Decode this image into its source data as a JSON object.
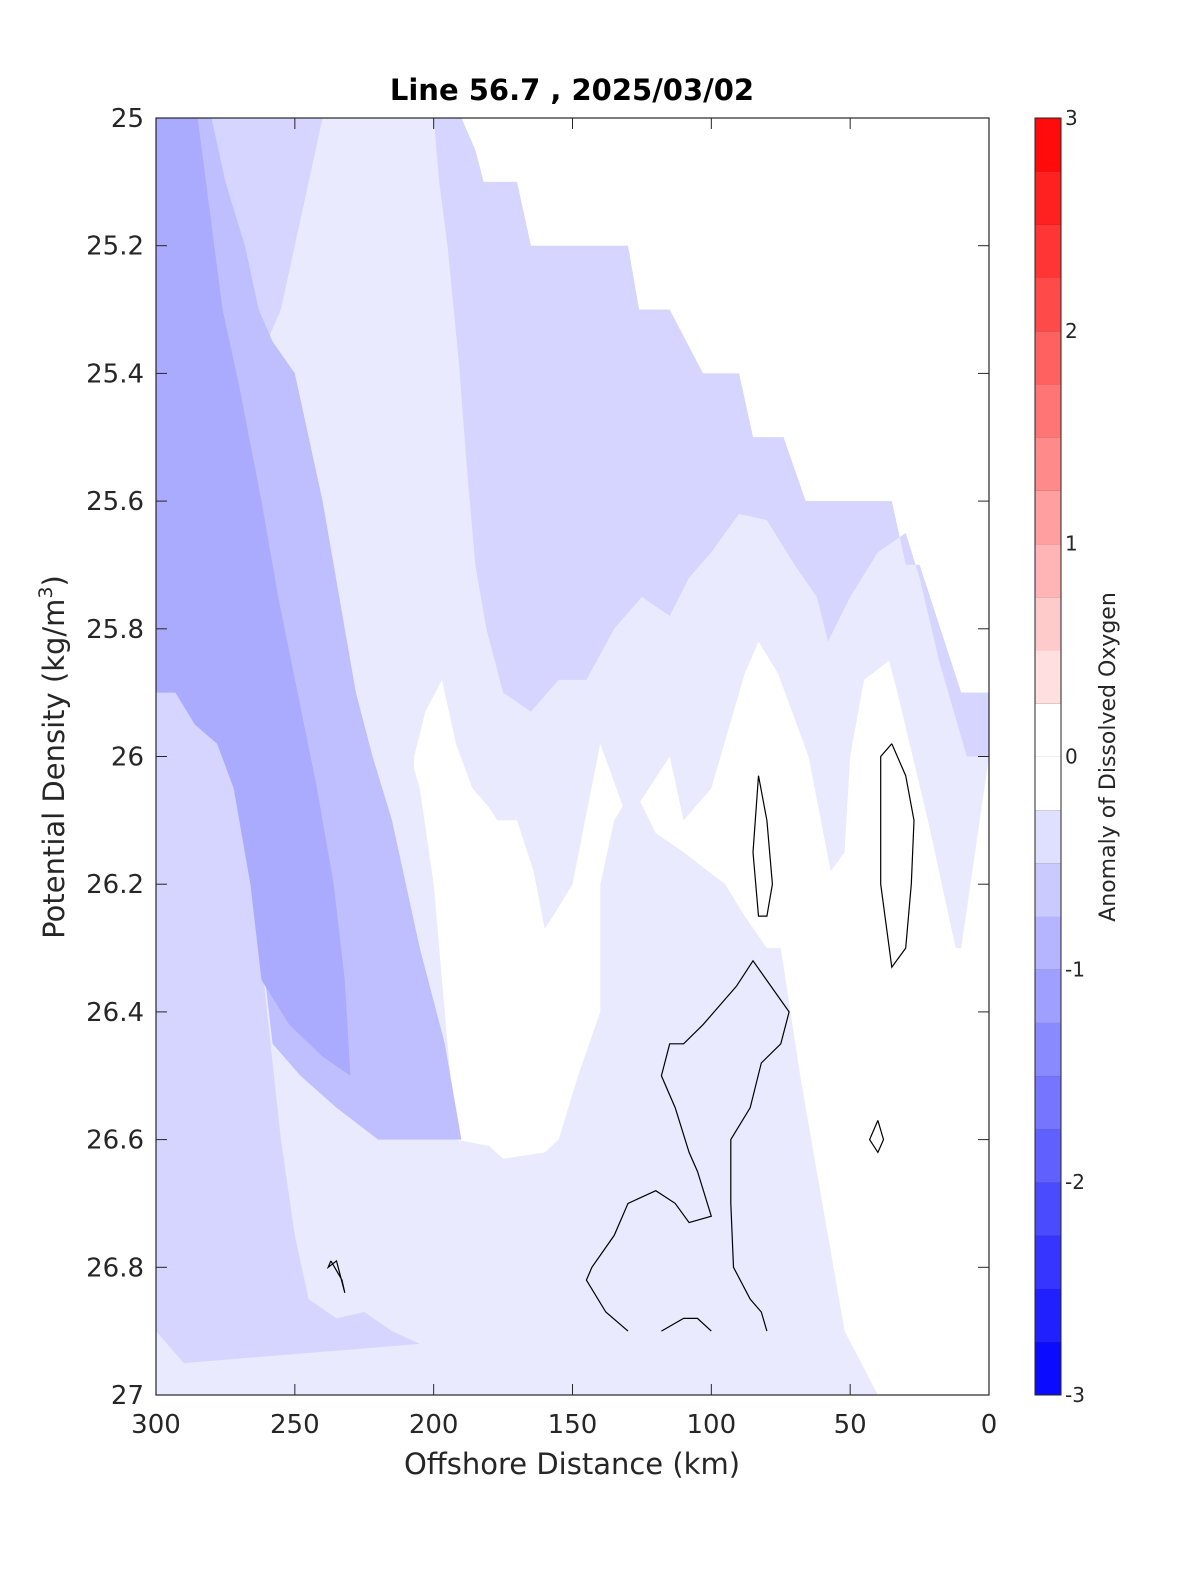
{
  "chart_data": {
    "type": "contour",
    "title": "Line 56.7 , 2025/03/02",
    "xlabel": "Offshore Distance (km)",
    "ylabel_main": "Potential Density (kg/m",
    "ylabel_sup": "3",
    "ylabel_close": ")",
    "xlim": [
      300,
      0
    ],
    "ylim": [
      25,
      27
    ],
    "x_reversed": true,
    "y_reversed": true,
    "x_ticks": [
      300,
      250,
      200,
      150,
      100,
      50,
      0
    ],
    "y_ticks": [
      25,
      25.2,
      25.4,
      25.6,
      25.8,
      26,
      26.2,
      26.4,
      26.6,
      26.8,
      27
    ],
    "x_tick_labels": [
      "300",
      "250",
      "200",
      "150",
      "100",
      "50",
      "0"
    ],
    "y_tick_labels": [
      "25",
      "25.2",
      "25.4",
      "25.6",
      "25.8",
      "26",
      "26.2",
      "26.4",
      "26.6",
      "26.8",
      "27"
    ],
    "colorbar": {
      "label": "Anomaly of Dissolved Oxygen",
      "range": [
        -3,
        3
      ],
      "step": 0.25,
      "ticks": [
        -3,
        -2,
        -1,
        0,
        1,
        2,
        3
      ],
      "tick_labels": [
        "-3",
        "-2",
        "-1",
        "0",
        "1",
        "2",
        "3"
      ],
      "negative_color": "#0000ff",
      "positive_color": "#ff0000",
      "neutral_color": "#ffffff"
    },
    "data_region_top_boundary": [
      [
        300,
        25.0
      ],
      [
        190,
        25.0
      ],
      [
        185,
        25.05
      ],
      [
        182,
        25.1
      ],
      [
        170,
        25.1
      ],
      [
        165,
        25.2
      ],
      [
        130,
        25.2
      ],
      [
        126,
        25.3
      ],
      [
        115,
        25.3
      ],
      [
        103,
        25.4
      ],
      [
        90,
        25.4
      ],
      [
        85,
        25.5
      ],
      [
        74,
        25.5
      ],
      [
        66,
        25.6
      ],
      [
        35,
        25.6
      ],
      [
        30,
        25.7
      ],
      [
        25,
        25.7
      ],
      [
        10,
        25.9
      ],
      [
        0,
        25.9
      ]
    ],
    "filled_levels": [
      {
        "level": -0.25,
        "points": [
          [
            300,
            25.0
          ],
          [
            190,
            25.0
          ],
          [
            185,
            25.05
          ],
          [
            182,
            25.1
          ],
          [
            170,
            25.1
          ],
          [
            165,
            25.2
          ],
          [
            130,
            25.2
          ],
          [
            126,
            25.3
          ],
          [
            115,
            25.3
          ],
          [
            103,
            25.4
          ],
          [
            90,
            25.4
          ],
          [
            85,
            25.5
          ],
          [
            74,
            25.5
          ],
          [
            66,
            25.6
          ],
          [
            35,
            25.6
          ],
          [
            30,
            25.7
          ],
          [
            25,
            25.7
          ],
          [
            10,
            25.9
          ],
          [
            0,
            25.9
          ],
          [
            0,
            26.0
          ],
          [
            5,
            26.15
          ],
          [
            10,
            26.3
          ],
          [
            12,
            26.3
          ],
          [
            22,
            26.1
          ],
          [
            33,
            25.9
          ],
          [
            36,
            25.85
          ],
          [
            45,
            25.88
          ],
          [
            50,
            26.0
          ],
          [
            52,
            26.15
          ],
          [
            57,
            26.18
          ],
          [
            65,
            26.0
          ],
          [
            76,
            25.87
          ],
          [
            83,
            25.82
          ],
          [
            88,
            25.87
          ],
          [
            100,
            26.05
          ],
          [
            110,
            26.1
          ],
          [
            115,
            26.0
          ],
          [
            130,
            26.1
          ],
          [
            140,
            25.98
          ],
          [
            150,
            26.2
          ],
          [
            157,
            26.25
          ],
          [
            160,
            26.27
          ],
          [
            164,
            26.18
          ],
          [
            170,
            26.1
          ],
          [
            177,
            26.1
          ],
          [
            180,
            26.08
          ],
          [
            186,
            26.05
          ],
          [
            192,
            25.98
          ],
          [
            197,
            25.88
          ],
          [
            203,
            25.93
          ],
          [
            207,
            26.0
          ],
          [
            208,
            26.15
          ],
          [
            210,
            26.2
          ],
          [
            217,
            26.33
          ],
          [
            225,
            26.4
          ],
          [
            230,
            26.3
          ],
          [
            233,
            26.17
          ],
          [
            245,
            25.85
          ],
          [
            247,
            25.7
          ],
          [
            244,
            25.45
          ],
          [
            238,
            25.32
          ],
          [
            233,
            25.4
          ],
          [
            237,
            25.5
          ],
          [
            243,
            25.6
          ],
          [
            252,
            25.7
          ],
          [
            258,
            25.72
          ],
          [
            265,
            25.73
          ],
          [
            275,
            25.6
          ],
          [
            278,
            25.5
          ],
          [
            270,
            25.45
          ],
          [
            260,
            25.43
          ],
          [
            240,
            25.6
          ],
          [
            230,
            25.75
          ],
          [
            215,
            25.9
          ],
          [
            205,
            26.05
          ],
          [
            200,
            26.2
          ],
          [
            196,
            26.4
          ],
          [
            192,
            26.6
          ],
          [
            180,
            26.61
          ],
          [
            175,
            26.63
          ],
          [
            160,
            26.62
          ],
          [
            155,
            26.6
          ],
          [
            148,
            26.5
          ],
          [
            140,
            26.4
          ],
          [
            140,
            26.2
          ],
          [
            135,
            26.1
          ],
          [
            128,
            26.05
          ],
          [
            120,
            26.12
          ],
          [
            110,
            26.15
          ],
          [
            95,
            26.2
          ],
          [
            88,
            26.25
          ],
          [
            80,
            26.3
          ],
          [
            75,
            26.3
          ],
          [
            68,
            26.5
          ],
          [
            60,
            26.7
          ],
          [
            52,
            26.9
          ],
          [
            40,
            27.0
          ],
          [
            300,
            27.0
          ]
        ]
      },
      {
        "level": -0.5,
        "points": [
          [
            300,
            25.0
          ],
          [
            190,
            25.0
          ],
          [
            185,
            25.05
          ],
          [
            182,
            25.1
          ],
          [
            170,
            25.1
          ],
          [
            165,
            25.2
          ],
          [
            130,
            25.2
          ],
          [
            126,
            25.3
          ],
          [
            115,
            25.3
          ],
          [
            103,
            25.4
          ],
          [
            90,
            25.4
          ],
          [
            85,
            25.5
          ],
          [
            74,
            25.5
          ],
          [
            66,
            25.6
          ],
          [
            35,
            25.6
          ],
          [
            30,
            25.7
          ],
          [
            25,
            25.7
          ],
          [
            10,
            25.9
          ],
          [
            0,
            25.9
          ],
          [
            0,
            26.0
          ],
          [
            8,
            26.0
          ],
          [
            18,
            25.85
          ],
          [
            25,
            25.72
          ],
          [
            30,
            25.65
          ],
          [
            40,
            25.68
          ],
          [
            50,
            25.75
          ],
          [
            58,
            25.82
          ],
          [
            62,
            25.75
          ],
          [
            70,
            25.7
          ],
          [
            80,
            25.63
          ],
          [
            90,
            25.62
          ],
          [
            100,
            25.68
          ],
          [
            108,
            25.72
          ],
          [
            115,
            25.78
          ],
          [
            125,
            25.75
          ],
          [
            135,
            25.8
          ],
          [
            145,
            25.88
          ],
          [
            155,
            25.88
          ],
          [
            165,
            25.93
          ],
          [
            175,
            25.9
          ],
          [
            181,
            25.8
          ],
          [
            185,
            25.7
          ],
          [
            188,
            25.55
          ],
          [
            191,
            25.38
          ],
          [
            195,
            25.2
          ],
          [
            198,
            25.1
          ],
          [
            200,
            25.0
          ],
          [
            240,
            25.0
          ],
          [
            245,
            25.1
          ],
          [
            250,
            25.2
          ],
          [
            255,
            25.3
          ],
          [
            260,
            25.35
          ],
          [
            270,
            25.38
          ],
          [
            285,
            25.33
          ],
          [
            293,
            25.3
          ],
          [
            298,
            25.15
          ],
          [
            300,
            25.15
          ],
          [
            300,
            25.73
          ],
          [
            290,
            25.8
          ],
          [
            280,
            25.85
          ],
          [
            272,
            26.0
          ],
          [
            265,
            26.2
          ],
          [
            260,
            26.4
          ],
          [
            255,
            26.6
          ],
          [
            250,
            26.75
          ],
          [
            245,
            26.85
          ],
          [
            235,
            26.88
          ],
          [
            225,
            26.87
          ],
          [
            215,
            26.9
          ],
          [
            205,
            26.92
          ],
          [
            290,
            26.95
          ],
          [
            300,
            26.9
          ]
        ]
      },
      {
        "level": -0.75,
        "points": [
          [
            300,
            25.0
          ],
          [
            280,
            25.0
          ],
          [
            275,
            25.1
          ],
          [
            268,
            25.2
          ],
          [
            263,
            25.3
          ],
          [
            258,
            25.35
          ],
          [
            250,
            25.4
          ],
          [
            245,
            25.5
          ],
          [
            240,
            25.6
          ],
          [
            236,
            25.7
          ],
          [
            232,
            25.8
          ],
          [
            228,
            25.9
          ],
          [
            222,
            26.0
          ],
          [
            215,
            26.1
          ],
          [
            210,
            26.2
          ],
          [
            205,
            26.3
          ],
          [
            196,
            26.45
          ],
          [
            192,
            26.55
          ],
          [
            190,
            26.6
          ],
          [
            220,
            26.6
          ],
          [
            235,
            26.55
          ],
          [
            248,
            26.5
          ],
          [
            258,
            26.45
          ],
          [
            262,
            26.3
          ],
          [
            268,
            26.1
          ],
          [
            272,
            26.0
          ],
          [
            278,
            25.95
          ],
          [
            285,
            25.9
          ],
          [
            290,
            25.88
          ],
          [
            296,
            25.85
          ],
          [
            300,
            25.85
          ]
        ]
      },
      {
        "level": -1.0,
        "points": [
          [
            300,
            25.0
          ],
          [
            285,
            25.0
          ],
          [
            282,
            25.1
          ],
          [
            279,
            25.2
          ],
          [
            276,
            25.3
          ],
          [
            270,
            25.42
          ],
          [
            262,
            25.6
          ],
          [
            256,
            25.75
          ],
          [
            249,
            25.9
          ],
          [
            242,
            26.05
          ],
          [
            236,
            26.2
          ],
          [
            232,
            26.35
          ],
          [
            230,
            26.5
          ],
          [
            240,
            26.47
          ],
          [
            252,
            26.42
          ],
          [
            262,
            26.35
          ],
          [
            266,
            26.2
          ],
          [
            272,
            26.05
          ],
          [
            278,
            25.98
          ],
          [
            286,
            25.95
          ],
          [
            293,
            25.9
          ],
          [
            300,
            25.9
          ]
        ]
      }
    ],
    "contour_lines_zero": [
      [
        [
          83,
          26.03
        ],
        [
          80,
          26.1
        ],
        [
          78,
          26.2
        ],
        [
          80,
          26.25
        ],
        [
          83,
          26.25
        ],
        [
          85,
          26.15
        ],
        [
          83,
          26.03
        ]
      ],
      [
        [
          35,
          25.98
        ],
        [
          30,
          26.03
        ],
        [
          27,
          26.1
        ],
        [
          28,
          26.2
        ],
        [
          30,
          26.3
        ],
        [
          35,
          26.33
        ],
        [
          39,
          26.2
        ],
        [
          39,
          26.0
        ],
        [
          35,
          25.98
        ]
      ],
      [
        [
          91,
          26.36
        ],
        [
          95,
          26.38
        ],
        [
          103,
          26.42
        ],
        [
          110,
          26.45
        ],
        [
          115,
          26.45
        ],
        [
          118,
          26.5
        ],
        [
          113,
          26.55
        ],
        [
          108,
          26.62
        ],
        [
          105,
          26.65
        ],
        [
          100,
          26.72
        ],
        [
          108,
          26.73
        ],
        [
          113,
          26.7
        ],
        [
          120,
          26.68
        ],
        [
          130,
          26.7
        ],
        [
          135,
          26.75
        ],
        [
          143,
          26.8
        ],
        [
          145,
          26.82
        ],
        [
          138,
          26.87
        ],
        [
          130,
          26.9
        ]
      ],
      [
        [
          100,
          26.9
        ],
        [
          105,
          26.88
        ],
        [
          110,
          26.88
        ],
        [
          118,
          26.9
        ]
      ],
      [
        [
          80,
          26.9
        ],
        [
          82,
          26.87
        ],
        [
          86,
          26.85
        ],
        [
          92,
          26.8
        ],
        [
          93,
          26.7
        ],
        [
          93,
          26.6
        ],
        [
          86,
          26.55
        ],
        [
          82,
          26.48
        ],
        [
          75,
          26.45
        ],
        [
          72,
          26.4
        ],
        [
          85,
          26.32
        ],
        [
          91,
          26.36
        ]
      ],
      [
        [
          40,
          26.57
        ],
        [
          38,
          26.6
        ],
        [
          40,
          26.62
        ],
        [
          43,
          26.6
        ],
        [
          40,
          26.57
        ]
      ],
      [
        [
          237,
          26.79
        ],
        [
          233,
          26.82
        ],
        [
          232,
          26.84
        ],
        [
          235,
          26.79
        ],
        [
          238,
          26.8
        ],
        [
          237,
          26.79
        ]
      ]
    ]
  }
}
